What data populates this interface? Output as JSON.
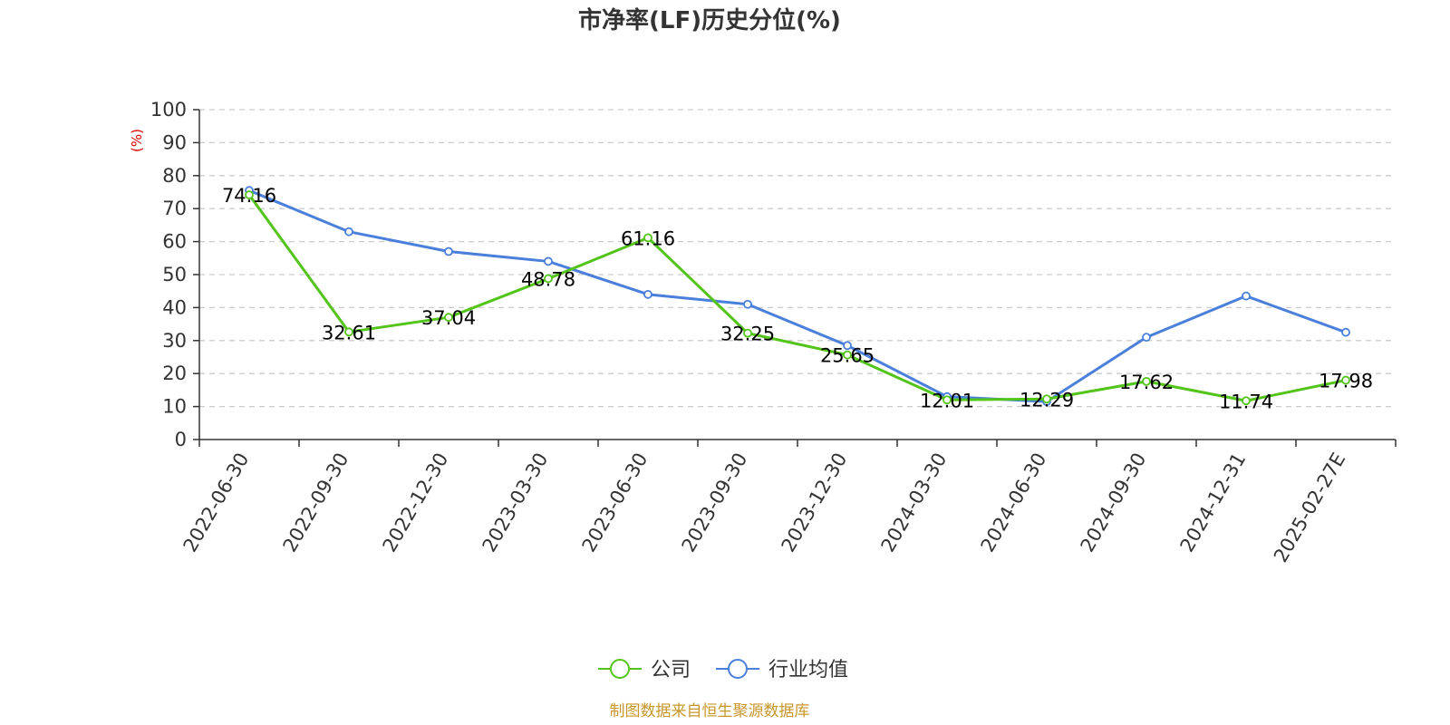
{
  "chart_data": {
    "type": "line",
    "title": "市净率(LF)历史分位(%)",
    "ylabel": "(%)",
    "xlabel": "",
    "ylim": [
      0,
      100
    ],
    "yticks": [
      "0",
      "10",
      "20",
      "30",
      "40",
      "50",
      "60",
      "70",
      "80",
      "90",
      "100"
    ],
    "grid": true,
    "legend_position": "bottom",
    "categories": [
      "2022-06-30",
      "2022-09-30",
      "2022-12-30",
      "2023-03-30",
      "2023-06-30",
      "2023-09-30",
      "2023-12-30",
      "2024-03-30",
      "2024-06-30",
      "2024-09-30",
      "2024-12-31",
      "2025-02-27E"
    ],
    "series": [
      {
        "name": "公司",
        "color": "#52c41a",
        "values": [
          74.16,
          32.61,
          37.04,
          48.78,
          61.16,
          32.25,
          25.65,
          12.01,
          12.29,
          17.62,
          11.74,
          17.98
        ],
        "labels": [
          "74.16",
          "32.61",
          "37.04",
          "48.78",
          "61.16",
          "32.25",
          "25.65",
          "12.01",
          "12.29",
          "17.62",
          "11.74",
          "17.98"
        ]
      },
      {
        "name": "行业均值",
        "color": "#4a7fdc",
        "values": [
          75.5,
          63.0,
          57.0,
          54.0,
          44.0,
          41.0,
          28.5,
          13.0,
          11.5,
          31.0,
          43.5,
          32.5
        ]
      }
    ],
    "axis_color": "#333333",
    "ylabel_color": "#e00000"
  },
  "footer": {
    "source": "制图数据来自恒生聚源数据库",
    "source_color": "#c8962a"
  }
}
